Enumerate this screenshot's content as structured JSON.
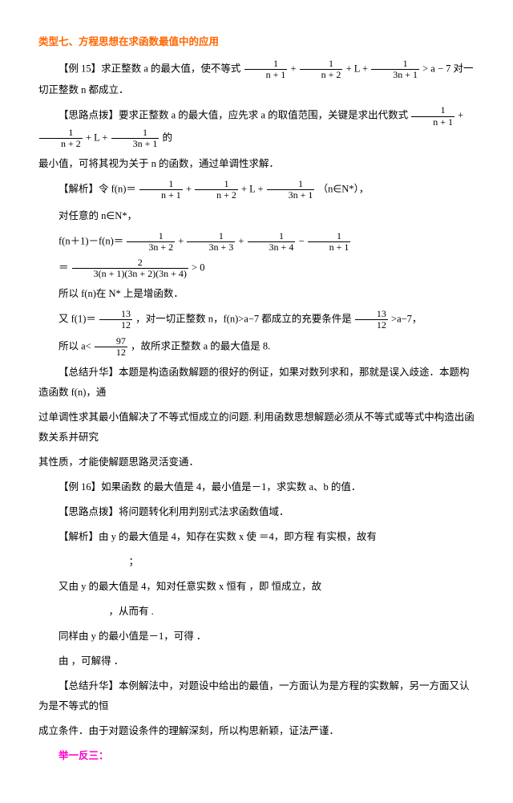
{
  "section_title": "类型七、方程思想在求函数最值中的应用",
  "example15_label": "【例 15】求正整数 a 的最大值，使不等式",
  "example15_tail": "> a − 7 对一切正整数 n 都成立．",
  "sl_prefix15": "【思路点拨】要求正整数 a 的最大值，应先求 a 的取值范围，关键是求出代数式",
  "sl_suffix15": "的",
  "sl_line2_15": "最小值，可将其视为关于 n 的函数，通过单调性求解．",
  "jx_label": "【解析】令 f(n)＝",
  "jx_tail": "（n∈N*），",
  "ren_line": "对任意的 n∈N*，",
  "diff_lhs": "f(n＋1)－f(n)＝",
  "big_frac_num": "2",
  "big_frac_den": "3(n + 1)(3n + 2)(3n + 4)",
  "gt0": " > 0",
  "so_incr": "所以 f(n)在 N* 上是增函数．",
  "f1_pref": "又 f(1)＝",
  "f1_frac_num": "13",
  "f1_frac_den": "12",
  "f1_tail1": "，对一切正整数 n，f(n)>a−7 都成立的充要条件是",
  "f1_tail2": ">a−7，",
  "so_a_pref": "所以 a<",
  "so_a_num": "97",
  "so_a_den": "12",
  "so_a_tail": "，故所求正整数 a 的最大值是 8.",
  "zj15_a": "【总结升华】本题是构造函数解题的很好的例证，如果对数列求和，那就是误入歧途．本题构造函数 f(n)，通",
  "zj15_b": "过单调性求其最小值解决了不等式恒成立的问题. 利用函数思想解题必须从不等式或等式中构造出函数关系并研究",
  "zj15_c": "其性质，才能使解题思路灵活变通．",
  "ex16": "【例 16】如果函数               的最大值是 4，最小值是－1，求实数 a、b 的值．",
  "sl16": "【思路点拨】将问题转化利用判别式法求函数值域．",
  "jx16_a": "【解析】由 y 的最大值是 4，知存在实数 x 使              ＝4，即方程                         有实根，故有",
  "semi": "；",
  "jx16_b": "又由 y 的最大值是 4，知对任意实数 x 恒有                ，即                         恒成立，故",
  "jx16_c": "，从而有                           .",
  "jx16_d": "同样由 y 的最小值是－1，可得                                ．",
  "jx16_e": "由            ，可解得                 ．",
  "zj16_a": "【总结升华】本例解法中，对题设中给出的最值，一方面认为是方程的实数解，另一方面又认为是不等式的恒",
  "zj16_b": "成立条件．由于对题设条件的理解深刻，所以构思新颖，证法严谨．",
  "jyft": "举一反三：",
  "frac_terms": {
    "t1n": "1",
    "t1d": "n + 1",
    "t2n": "1",
    "t2d": "n + 2",
    "t3n": "1",
    "t3d": "3n + 1",
    "d1n": "1",
    "d1d": "3n + 2",
    "d2n": "1",
    "d2d": "3n + 3",
    "d3n": "1",
    "d3d": "3n + 4",
    "d4n": "1",
    "d4d": "n + 1"
  },
  "plusL": " + L  + ",
  "plus": " + ",
  "minus": " − ",
  "eq": "＝ "
}
